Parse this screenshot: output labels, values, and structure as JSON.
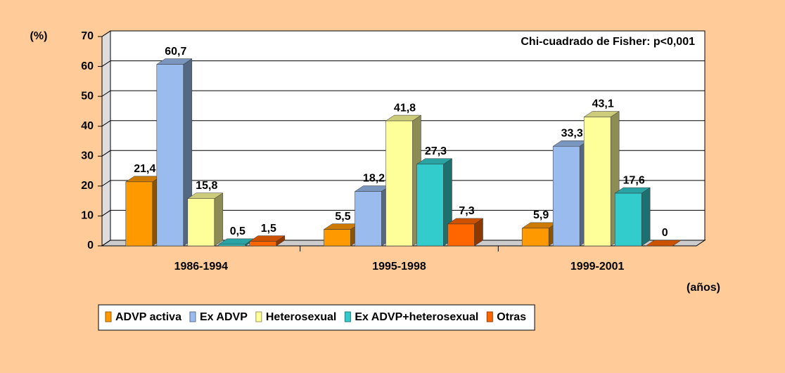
{
  "chart_data": {
    "type": "bar",
    "y_label": "(%)",
    "x_label": "(años)",
    "annotation": "Chi-cuadrado de Fisher: p<0,001",
    "categories": [
      "1986-1994",
      "1995-1998",
      "1999-2001"
    ],
    "series": [
      {
        "name": "ADVP activa",
        "color": "#FF9900",
        "values": [
          21.4,
          5.5,
          5.9
        ],
        "value_labels": [
          "21,4",
          "5,5",
          "5,9"
        ]
      },
      {
        "name": "Ex ADVP",
        "color": "#99BBEE",
        "values": [
          60.7,
          18.2,
          33.3
        ],
        "value_labels": [
          "60,7",
          "18,2",
          "33,3"
        ]
      },
      {
        "name": "Heterosexual",
        "color": "#FFFF99",
        "values": [
          15.8,
          41.8,
          43.1
        ],
        "value_labels": [
          "15,8",
          "41,8",
          "43,1"
        ]
      },
      {
        "name": "Ex ADVP+heterosexual",
        "color": "#33CCCC",
        "values": [
          0.5,
          27.3,
          17.6
        ],
        "value_labels": [
          "0,5",
          "27,3",
          "17,6"
        ]
      },
      {
        "name": "Otras",
        "color": "#FF6600",
        "values": [
          1.5,
          7.3,
          0
        ],
        "value_labels": [
          "1,5",
          "7,3",
          "0"
        ]
      }
    ],
    "ylim": [
      0,
      70
    ],
    "yticks": [
      0,
      10,
      20,
      30,
      40,
      50,
      60,
      70
    ],
    "grid": true,
    "legend": "bottom"
  }
}
